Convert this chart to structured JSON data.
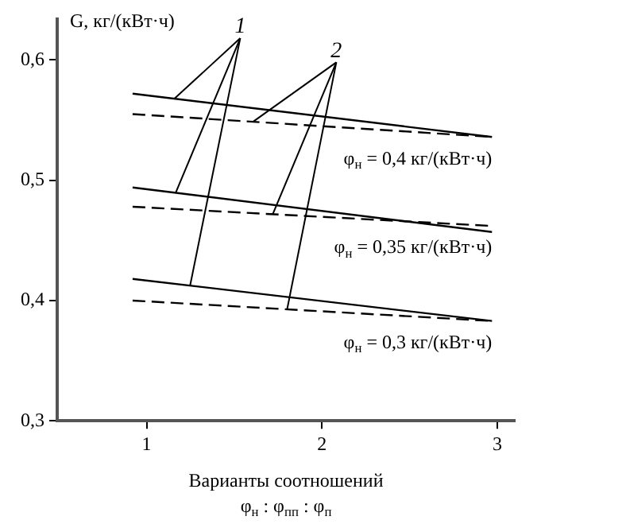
{
  "chart_data": {
    "type": "line",
    "ylabel": "G, кг/(кВт·ч)",
    "xlabel": "Варианты соотношений\nφ$_{н}$ : φ$_{пп}$ : φ$_{п}$",
    "x": [
      0.92,
      2.97
    ],
    "series": [
      {
        "color": "#000000",
        "line_style": "solid",
        "values": [
          0.572,
          0.536
        ]
      },
      {
        "color": "#000000",
        "line_style": "dashed",
        "values": [
          0.555,
          0.536
        ]
      },
      {
        "color": "#000000",
        "line_style": "solid",
        "values": [
          0.494,
          0.457
        ]
      },
      {
        "color": "#000000",
        "line_style": "dashed",
        "values": [
          0.478,
          0.462
        ]
      },
      {
        "color": "#000000",
        "line_style": "solid",
        "values": [
          0.418,
          0.383
        ]
      },
      {
        "color": "#000000",
        "line_style": "dashed",
        "values": [
          0.4,
          0.383
        ]
      }
    ],
    "xlim": [
      0.49,
      3.1
    ],
    "xticks": [
      1,
      2,
      3
    ],
    "ylim": [
      0.3,
      0.634
    ],
    "yticks": [
      {
        "value": 0.3,
        "label": "0,3"
      },
      {
        "value": 0.4,
        "label": "0,4"
      },
      {
        "value": 0.5,
        "label": "0,5"
      },
      {
        "value": 0.6,
        "label": "0,6"
      }
    ],
    "annotations": [
      {
        "text": "1",
        "x": 1.16,
        "y": 0.568
      },
      {
        "text": "2",
        "x": 1.61,
        "y": 0.549
      },
      "φ$_{н}$ = 0,4 кг/(кВт·ч)",
      "φ$_{н}$ = 0,35 кг/(кВт·ч)",
      "φ$_{н}$ = 0,3 кг/(кВт·ч)"
    ],
    "grid": false,
    "legend": false,
    "marker": "none"
  }
}
